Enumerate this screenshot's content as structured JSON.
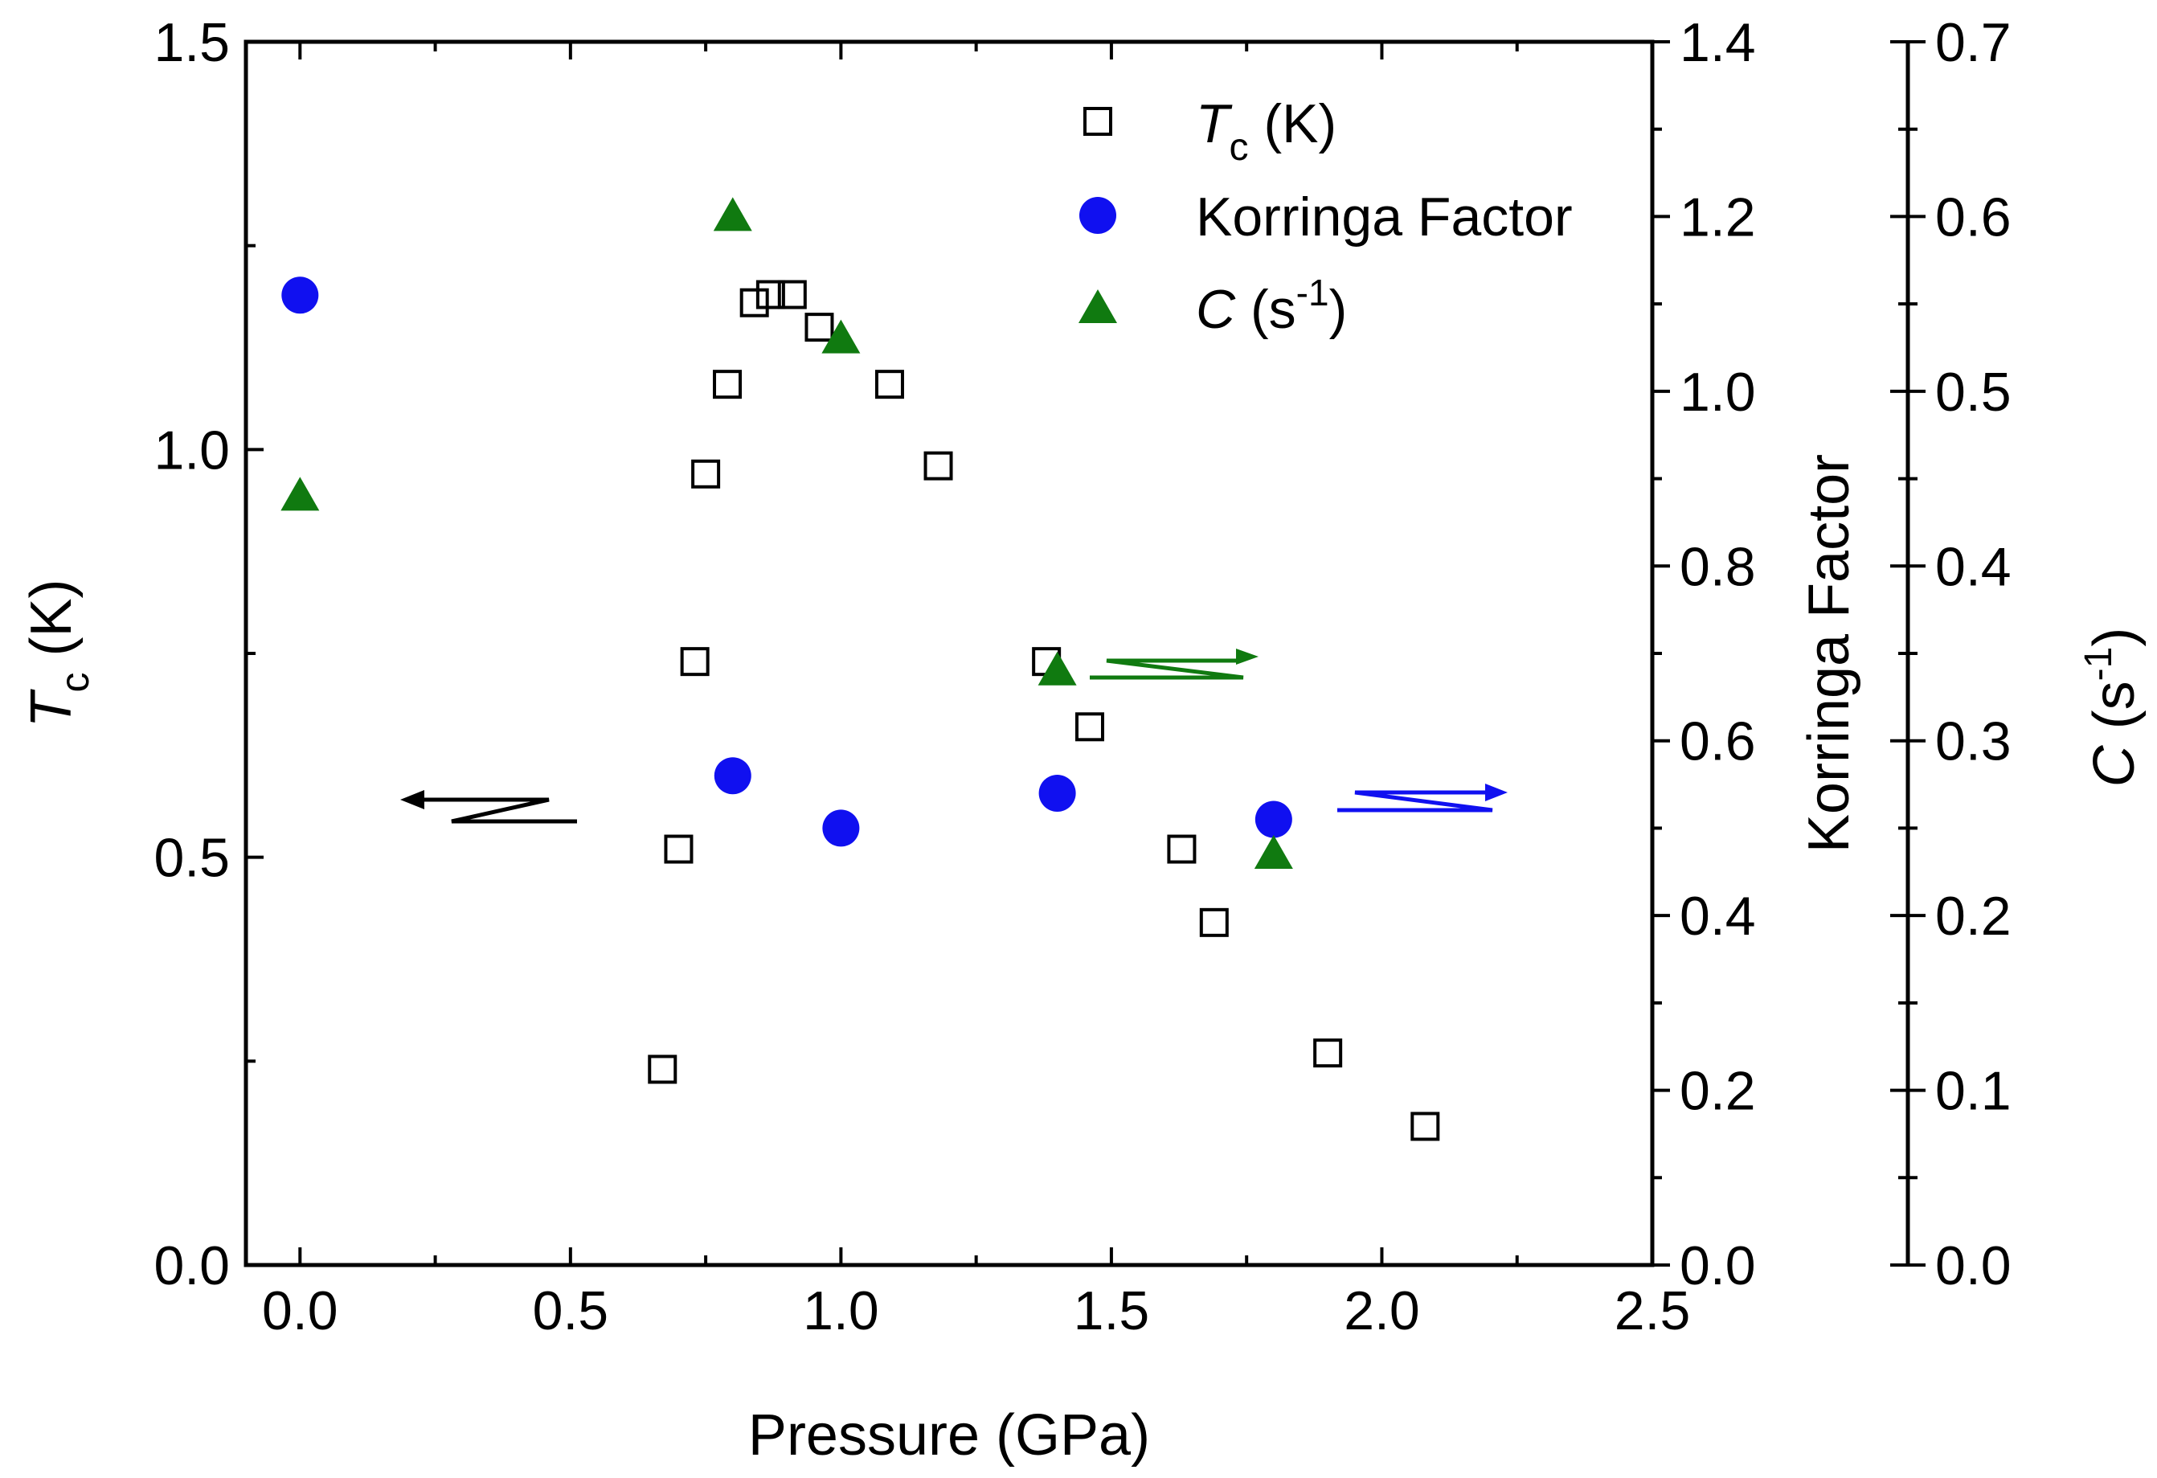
{
  "chart_data": {
    "type": "scatter",
    "xlabel": "Pressure (GPa)",
    "xlim": [
      -0.1,
      2.5
    ],
    "xticks": [
      "0.0",
      "0.5",
      "1.0",
      "1.5",
      "2.0",
      "2.5"
    ],
    "y_left": {
      "label_main": "T",
      "label_sub": "c",
      "label_rest": " (K)",
      "lim": [
        0.0,
        1.5
      ],
      "ticks": [
        "0.0",
        "0.5",
        "1.0",
        "1.5"
      ]
    },
    "y_right1": {
      "label": "Korringa Factor",
      "lim": [
        0.0,
        1.4
      ],
      "ticks": [
        "0.0",
        "0.2",
        "0.4",
        "0.6",
        "0.8",
        "1.0",
        "1.2",
        "1.4"
      ]
    },
    "y_right2": {
      "label_main": "C",
      "label_rest": " (s",
      "label_sup": "-1",
      "label_close": ")",
      "lim": [
        0.0,
        0.7
      ],
      "ticks": [
        "0.0",
        "0.1",
        "0.2",
        "0.3",
        "0.4",
        "0.5",
        "0.6",
        "0.7"
      ]
    },
    "series": [
      {
        "name": "Tc (K)",
        "legend_main": "T",
        "legend_sub": "c",
        "legend_rest": " (K)",
        "axis": "left",
        "marker": "open-square",
        "color": "#000000",
        "x": [
          0.67,
          0.7,
          0.73,
          0.75,
          0.79,
          0.84,
          0.87,
          0.91,
          0.96,
          1.09,
          1.18,
          1.38,
          1.46,
          1.63,
          1.69,
          1.9,
          2.08
        ],
        "y": [
          0.24,
          0.51,
          0.74,
          0.97,
          1.08,
          1.18,
          1.19,
          1.19,
          1.15,
          1.08,
          0.98,
          0.74,
          0.66,
          0.51,
          0.42,
          0.26,
          0.17
        ]
      },
      {
        "name": "Korringa Factor",
        "legend_main": "Korringa Factor",
        "axis": "right1",
        "marker": "filled-circle",
        "color": "#1010f0",
        "x": [
          0.0,
          0.8,
          1.0,
          1.4,
          1.8
        ],
        "y": [
          1.11,
          0.56,
          0.5,
          0.54,
          0.51
        ]
      },
      {
        "name": "C (s-1)",
        "legend_main": "C",
        "legend_rest": " (s",
        "legend_sup": "-1",
        "legend_close": ")",
        "axis": "right2",
        "marker": "filled-triangle",
        "color": "#107a10",
        "x": [
          0.0,
          0.8,
          1.0,
          1.4,
          1.8
        ],
        "y": [
          0.44,
          0.6,
          0.53,
          0.34,
          0.235
        ]
      }
    ],
    "annotations": [
      {
        "type": "arrow",
        "points_to": "left-axis",
        "color": "#000000"
      },
      {
        "type": "arrow",
        "points_to": "right2-axis",
        "color": "#107a10"
      },
      {
        "type": "arrow",
        "points_to": "right1-axis",
        "color": "#1010f0"
      }
    ],
    "legend_position": "top-right"
  }
}
